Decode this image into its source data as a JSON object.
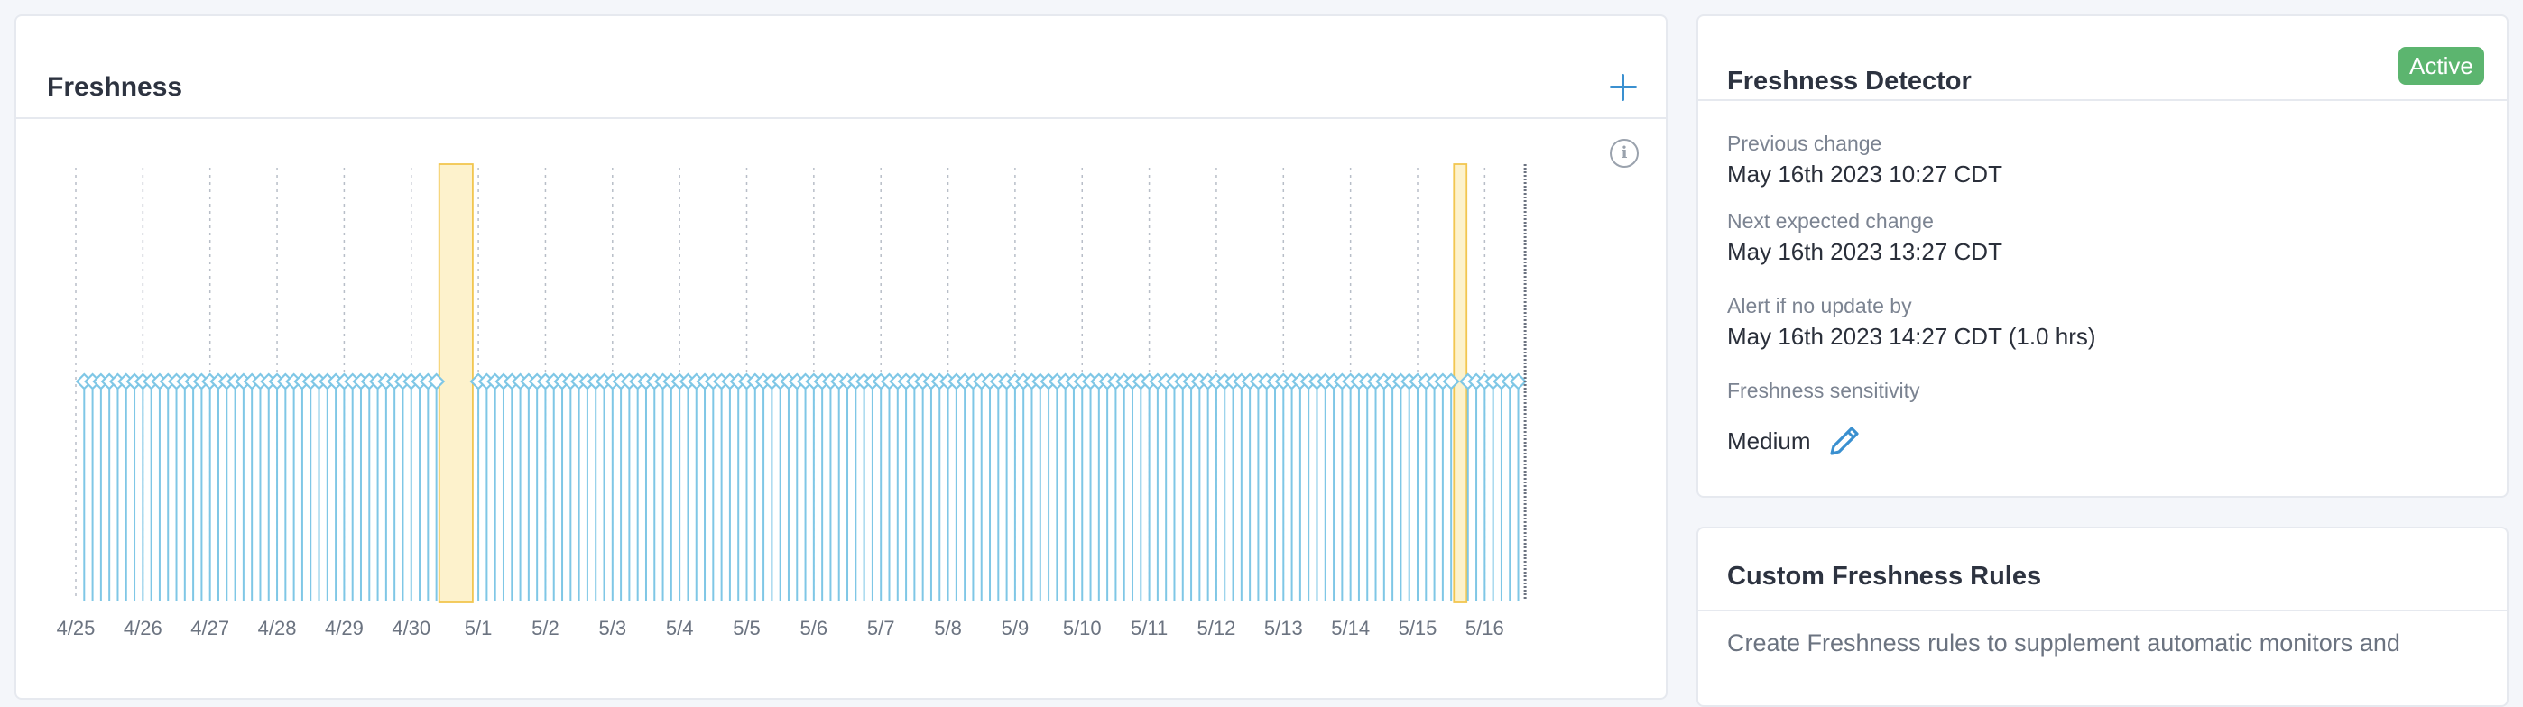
{
  "freshness_card": {
    "title": "Freshness",
    "add_label": "+",
    "info_label": "i"
  },
  "chart_data": {
    "type": "timeline",
    "title": "Freshness",
    "x_tick_labels": [
      "4/25",
      "4/26",
      "4/27",
      "4/28",
      "4/29",
      "4/30",
      "5/1",
      "5/2",
      "5/3",
      "5/4",
      "5/5",
      "5/6",
      "5/7",
      "5/8",
      "5/9",
      "5/10",
      "5/11",
      "5/12",
      "5/13",
      "5/14",
      "5/15",
      "5/16"
    ],
    "x_range": [
      "2023-04-25",
      "2023-05-16 14:27"
    ],
    "update_markers_per_day": 8,
    "gap_windows": [
      {
        "start": "2023-04-30 10:00",
        "end": "2023-04-30 22:00"
      },
      {
        "start": "2023-05-15 13:00",
        "end": "2023-05-15 17:30"
      }
    ],
    "colors": {
      "update": "#7fc7e6",
      "marker_fill": "#ffffff",
      "gap_fill": "#fdf2cc",
      "gap_stroke": "#f2c650",
      "grid": "#b8bec8",
      "now_line": "#6b7280"
    }
  },
  "detector_card": {
    "title": "Freshness Detector",
    "status": "Active",
    "previous_change_label": "Previous change",
    "previous_change_value": "May 16th 2023 10:27 CDT",
    "next_expected_label": "Next expected change",
    "next_expected_value": "May 16th 2023 13:27 CDT",
    "alert_label": "Alert if no update by",
    "alert_value": "May 16th 2023 14:27 CDT (1.0 hrs)",
    "sensitivity_label": "Freshness sensitivity",
    "sensitivity_value": "Medium",
    "edit_icon": "pencil-icon",
    "accent": "#3a90d0",
    "status_color": "#5cb56f"
  },
  "rules_card": {
    "title": "Custom Freshness Rules",
    "description": "Create Freshness rules to supplement automatic monitors and"
  }
}
